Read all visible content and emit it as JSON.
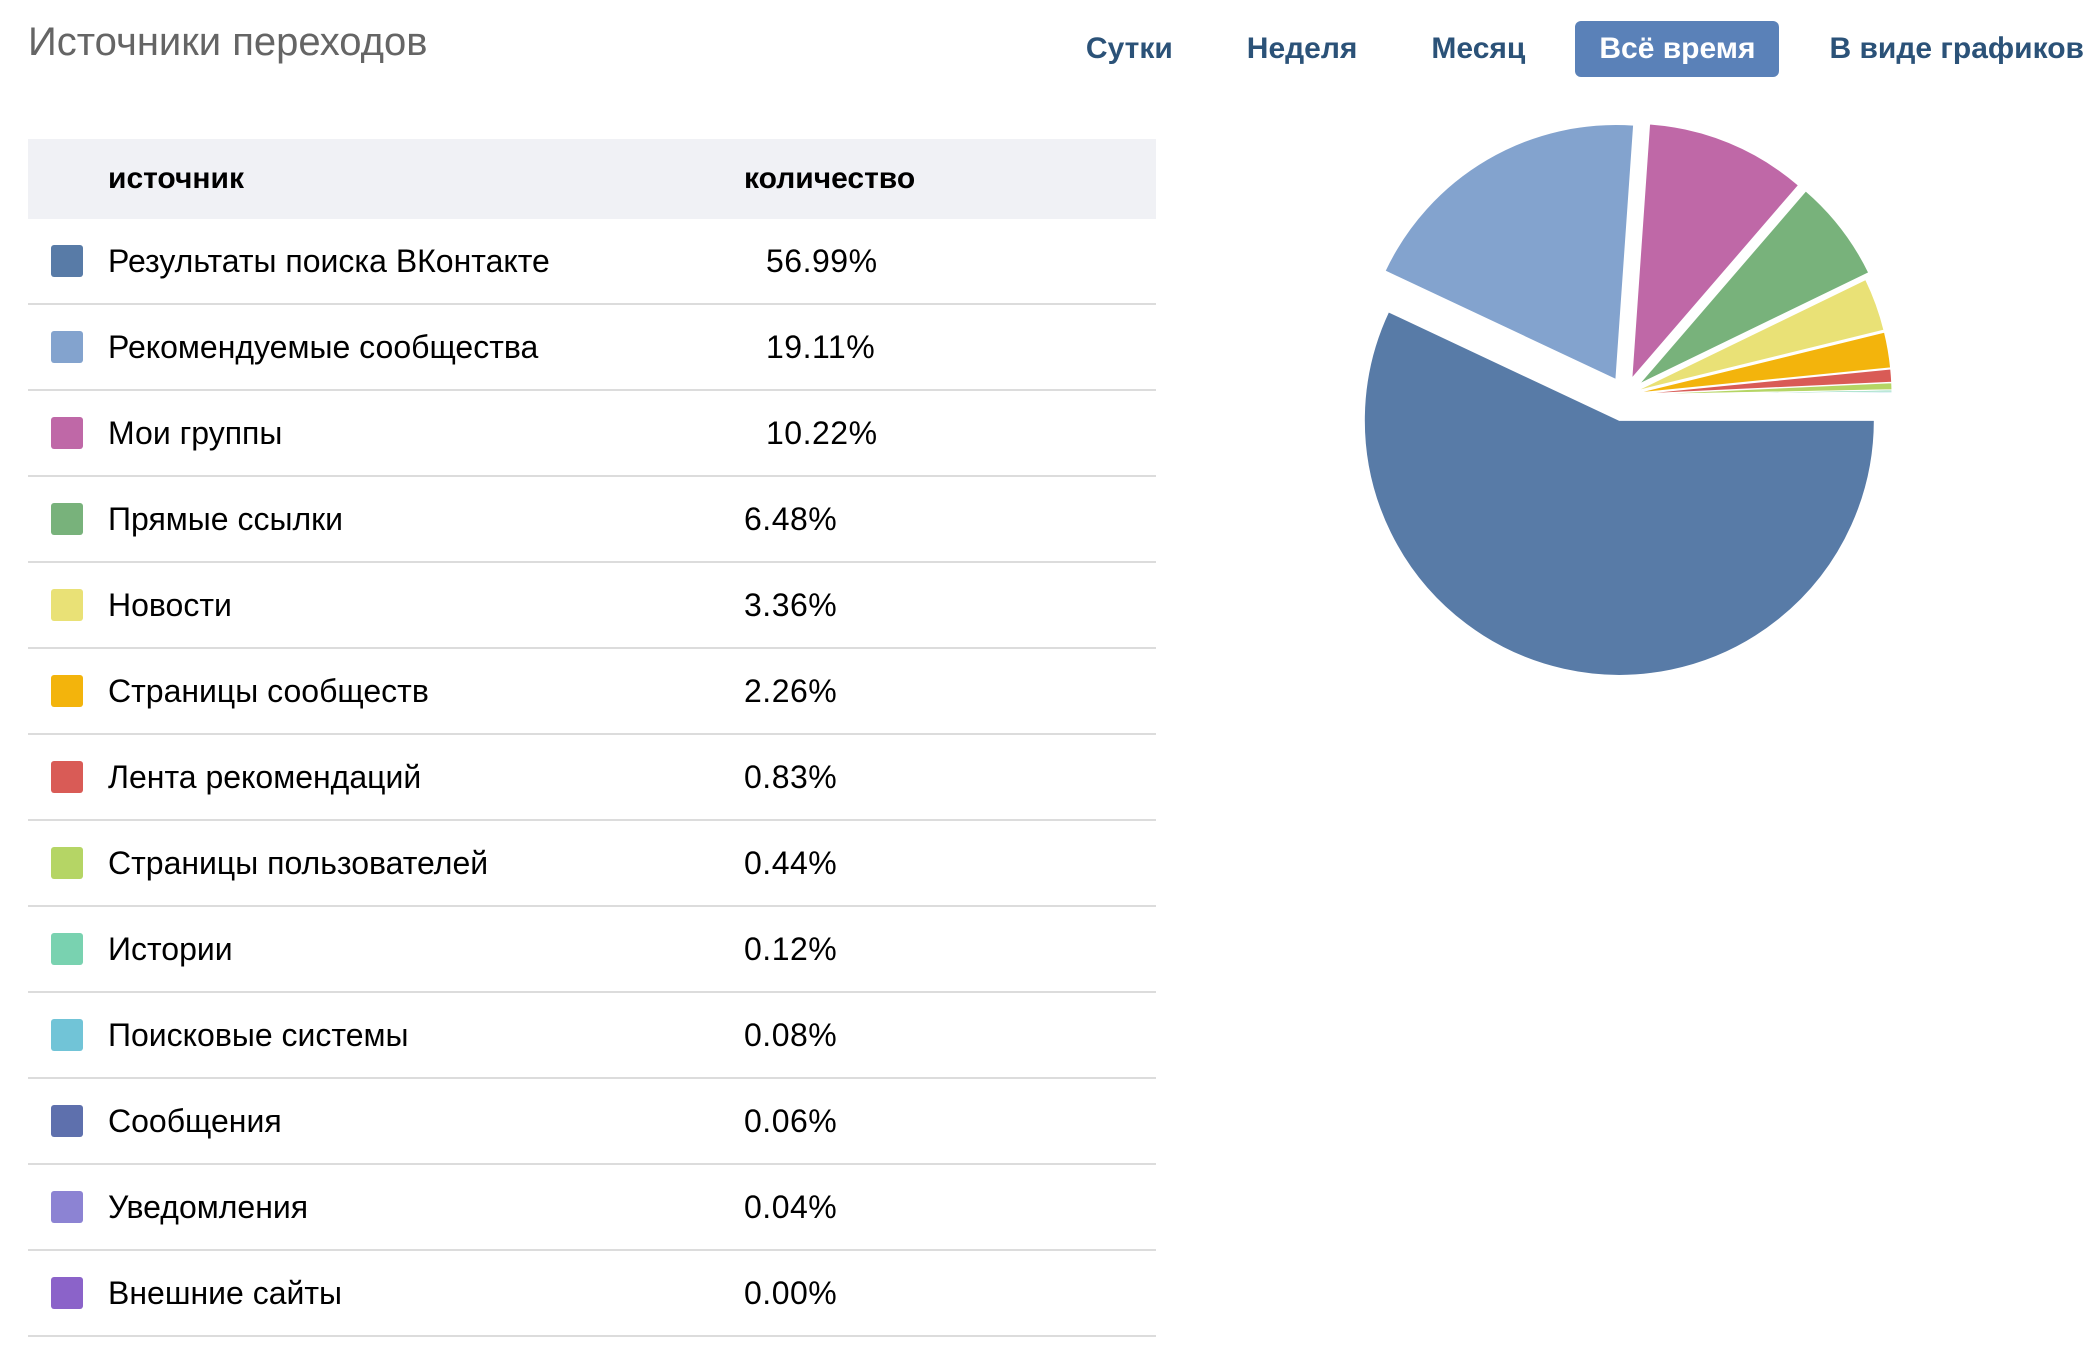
{
  "page": {
    "title": "Источники переходов"
  },
  "period_tabs": [
    {
      "label": "Сутки",
      "active": false
    },
    {
      "label": "Неделя",
      "active": false
    },
    {
      "label": "Месяц",
      "active": false
    },
    {
      "label": "Всё время",
      "active": true
    },
    {
      "label": "В виде графиков",
      "active": false
    }
  ],
  "table": {
    "headers": {
      "source": "источник",
      "count": "количество"
    }
  },
  "colors": {
    "accent": "#5a81b8",
    "tab_text": "#2b5278",
    "header_bg": "#f0f1f5"
  },
  "chart_data": {
    "type": "pie",
    "exploded": true,
    "slices": [
      {
        "label": "Результаты поиска ВКонтакте",
        "value": 56.99,
        "display": "56.99%",
        "color": "#587ba7"
      },
      {
        "label": "Рекомендуемые сообщества",
        "value": 19.11,
        "display": "19.11%",
        "color": "#83a3ce"
      },
      {
        "label": "Мои группы",
        "value": 10.22,
        "display": "10.22%",
        "color": "#bf68a7"
      },
      {
        "label": "Прямые ссылки",
        "value": 6.48,
        "display": "6.48%",
        "color": "#78b27b"
      },
      {
        "label": "Новости",
        "value": 3.36,
        "display": "3.36%",
        "color": "#e9e176"
      },
      {
        "label": "Страницы сообществ",
        "value": 2.26,
        "display": "2.26%",
        "color": "#f3b40c"
      },
      {
        "label": "Лента рекомендаций",
        "value": 0.83,
        "display": "0.83%",
        "color": "#d95b56"
      },
      {
        "label": "Страницы пользователей",
        "value": 0.44,
        "display": "0.44%",
        "color": "#b5d565"
      },
      {
        "label": "Истории",
        "value": 0.12,
        "display": "0.12%",
        "color": "#79d2b0"
      },
      {
        "label": "Поисковые системы",
        "value": 0.08,
        "display": "0.08%",
        "color": "#71c4d7"
      },
      {
        "label": "Сообщения",
        "value": 0.06,
        "display": "0.06%",
        "color": "#5e70ad"
      },
      {
        "label": "Уведомления",
        "value": 0.04,
        "display": "0.04%",
        "color": "#8c83d3"
      },
      {
        "label": "Внешние сайты",
        "value": 0.0,
        "display": "0.00%",
        "color": "#8b63c9"
      }
    ]
  }
}
